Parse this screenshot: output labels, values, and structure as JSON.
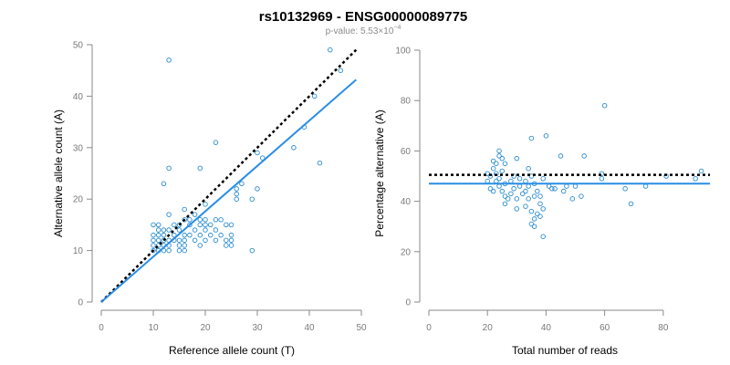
{
  "chart_data": {
    "title": "rs10132969 - ENSG00000089775",
    "subtitle": {
      "prefix": "p-value: 5.53×10",
      "exponent": "−4"
    },
    "panels": [
      {
        "type": "scatter",
        "xlabel": "Reference allele count (T)",
        "ylabel": "Alternative allele count (A)",
        "xlim": [
          0,
          50
        ],
        "ylim": [
          0,
          50
        ],
        "xticks": [
          0,
          10,
          20,
          30,
          40,
          50
        ],
        "yticks": [
          0,
          10,
          20,
          30,
          40,
          50
        ],
        "reference_line": {
          "label": "",
          "points": [
            [
              0,
              0
            ],
            [
              49,
              49
            ]
          ]
        },
        "fit_line": {
          "points": [
            [
              0,
              0
            ],
            [
              49,
              43.2
            ]
          ]
        },
        "points": [
          [
            10,
            10
          ],
          [
            10,
            11
          ],
          [
            10,
            12
          ],
          [
            10,
            13
          ],
          [
            10,
            15
          ],
          [
            11,
            10
          ],
          [
            11,
            11
          ],
          [
            11,
            12
          ],
          [
            11,
            13
          ],
          [
            11,
            14
          ],
          [
            11,
            15
          ],
          [
            12,
            10
          ],
          [
            12,
            11
          ],
          [
            12,
            12
          ],
          [
            12,
            13
          ],
          [
            12,
            14
          ],
          [
            12,
            23
          ],
          [
            13,
            10
          ],
          [
            13,
            11
          ],
          [
            13,
            12
          ],
          [
            13,
            14
          ],
          [
            13,
            17
          ],
          [
            13,
            26
          ],
          [
            13,
            47
          ],
          [
            14,
            12
          ],
          [
            14,
            13
          ],
          [
            14,
            15
          ],
          [
            15,
            10
          ],
          [
            15,
            11
          ],
          [
            15,
            12
          ],
          [
            15,
            14
          ],
          [
            15,
            15
          ],
          [
            16,
            10
          ],
          [
            16,
            11
          ],
          [
            16,
            12
          ],
          [
            16,
            13
          ],
          [
            16,
            16
          ],
          [
            16,
            18
          ],
          [
            17,
            13
          ],
          [
            17,
            15
          ],
          [
            17,
            16
          ],
          [
            18,
            12
          ],
          [
            18,
            14
          ],
          [
            18,
            17
          ],
          [
            19,
            11
          ],
          [
            19,
            13
          ],
          [
            19,
            15
          ],
          [
            19,
            16
          ],
          [
            19,
            26
          ],
          [
            20,
            12
          ],
          [
            20,
            14
          ],
          [
            20,
            15
          ],
          [
            20,
            16
          ],
          [
            20,
            19
          ],
          [
            21,
            13
          ],
          [
            21,
            15
          ],
          [
            22,
            12
          ],
          [
            22,
            14
          ],
          [
            22,
            16
          ],
          [
            22,
            31
          ],
          [
            23,
            13
          ],
          [
            23,
            16
          ],
          [
            24,
            11
          ],
          [
            24,
            12
          ],
          [
            24,
            15
          ],
          [
            25,
            11
          ],
          [
            25,
            12
          ],
          [
            25,
            13
          ],
          [
            25,
            15
          ],
          [
            26,
            20
          ],
          [
            26,
            21
          ],
          [
            26,
            22
          ],
          [
            27,
            23
          ],
          [
            29,
            10
          ],
          [
            29,
            20
          ],
          [
            30,
            22
          ],
          [
            30,
            29
          ],
          [
            31,
            28
          ],
          [
            37,
            30
          ],
          [
            39,
            34
          ],
          [
            41,
            40
          ],
          [
            42,
            27
          ],
          [
            44,
            49
          ],
          [
            46,
            45
          ]
        ]
      },
      {
        "type": "scatter",
        "xlabel": "Total number of reads",
        "ylabel": "Percentage alternative (A)",
        "xlim": [
          0,
          95
        ],
        "ylim": [
          0,
          100
        ],
        "xticks": [
          0,
          20,
          40,
          60,
          80
        ],
        "yticks": [
          0,
          20,
          40,
          60,
          80,
          100
        ],
        "reference_line": {
          "y": 50.5
        },
        "fit_line": {
          "y": 47
        },
        "points": [
          [
            20,
            48
          ],
          [
            20,
            51
          ],
          [
            21,
            45
          ],
          [
            21,
            50
          ],
          [
            22,
            53
          ],
          [
            22,
            56
          ],
          [
            22,
            44
          ],
          [
            23,
            48
          ],
          [
            23,
            51
          ],
          [
            23,
            55
          ],
          [
            24,
            46
          ],
          [
            24,
            49
          ],
          [
            24,
            58
          ],
          [
            24,
            60
          ],
          [
            25,
            52
          ],
          [
            25,
            57
          ],
          [
            25,
            44
          ],
          [
            26,
            39
          ],
          [
            26,
            42
          ],
          [
            26,
            47
          ],
          [
            26,
            55
          ],
          [
            27,
            41
          ],
          [
            28,
            43
          ],
          [
            28,
            48
          ],
          [
            29,
            50
          ],
          [
            29,
            45
          ],
          [
            30,
            37
          ],
          [
            30,
            41
          ],
          [
            30,
            57
          ],
          [
            31,
            46
          ],
          [
            31,
            49
          ],
          [
            32,
            43
          ],
          [
            33,
            38
          ],
          [
            33,
            44
          ],
          [
            33,
            48
          ],
          [
            34,
            41
          ],
          [
            34,
            46
          ],
          [
            34,
            53
          ],
          [
            35,
            36
          ],
          [
            35,
            50
          ],
          [
            35,
            65
          ],
          [
            35,
            31
          ],
          [
            36,
            30
          ],
          [
            36,
            33
          ],
          [
            36,
            42
          ],
          [
            36,
            47
          ],
          [
            37,
            35
          ],
          [
            37,
            44
          ],
          [
            38,
            34
          ],
          [
            38,
            39
          ],
          [
            38,
            42
          ],
          [
            39,
            37
          ],
          [
            39,
            49
          ],
          [
            39,
            26
          ],
          [
            40,
            66
          ],
          [
            41,
            46
          ],
          [
            42,
            45
          ],
          [
            43,
            45
          ],
          [
            45,
            58
          ],
          [
            46,
            44
          ],
          [
            47,
            46
          ],
          [
            49,
            41
          ],
          [
            50,
            46
          ],
          [
            52,
            42
          ],
          [
            53,
            58
          ],
          [
            59,
            49
          ],
          [
            59,
            51
          ],
          [
            60,
            78
          ],
          [
            67,
            45
          ],
          [
            69,
            39
          ],
          [
            74,
            46
          ],
          [
            81,
            50
          ],
          [
            91,
            49
          ],
          [
            93,
            52
          ]
        ]
      }
    ]
  }
}
